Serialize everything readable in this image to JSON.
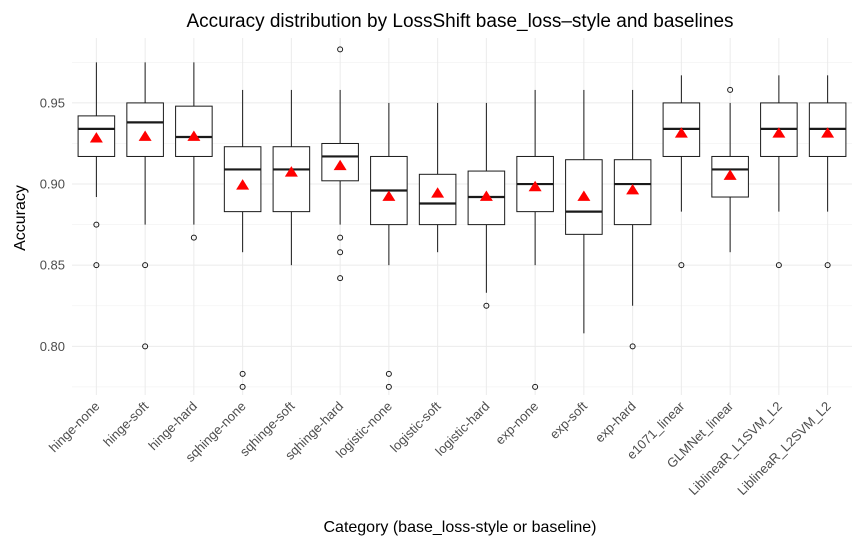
{
  "chart_data": {
    "type": "boxplot",
    "title": "Accuracy distribution by LossShift base_loss–style and baselines",
    "xlabel": "Category (base_loss-style or baseline)",
    "ylabel": "Accuracy",
    "ylim": [
      0.77,
      0.99
    ],
    "yticks": [
      0.8,
      0.85,
      0.9,
      0.95
    ],
    "grid": true,
    "mean_marker": "red-triangle",
    "mean_color": "#ff0000",
    "categories": [
      "hinge-none",
      "hinge-soft",
      "hinge-hard",
      "sqhinge-none",
      "sqhinge-soft",
      "sqhinge-hard",
      "logistic-none",
      "logistic-soft",
      "logistic-hard",
      "exp-none",
      "exp-soft",
      "exp-hard",
      "e1071_linear",
      "GLMNet_linear",
      "LiblineaR_L1SVM_L2",
      "LiblineaR_L2SVM_L2"
    ],
    "boxes": [
      {
        "whisker_low": 0.892,
        "q1": 0.917,
        "median": 0.934,
        "q3": 0.942,
        "whisker_high": 0.975,
        "mean": 0.928,
        "outliers": [
          0.875,
          0.85
        ]
      },
      {
        "whisker_low": 0.875,
        "q1": 0.917,
        "median": 0.938,
        "q3": 0.95,
        "whisker_high": 0.975,
        "mean": 0.929,
        "outliers": [
          0.85,
          0.8
        ]
      },
      {
        "whisker_low": 0.875,
        "q1": 0.917,
        "median": 0.929,
        "q3": 0.948,
        "whisker_high": 0.975,
        "mean": 0.929,
        "outliers": [
          0.867
        ]
      },
      {
        "whisker_low": 0.858,
        "q1": 0.883,
        "median": 0.909,
        "q3": 0.923,
        "whisker_high": 0.958,
        "mean": 0.899,
        "outliers": [
          0.783,
          0.775
        ]
      },
      {
        "whisker_low": 0.85,
        "q1": 0.883,
        "median": 0.909,
        "q3": 0.923,
        "whisker_high": 0.958,
        "mean": 0.907,
        "outliers": []
      },
      {
        "whisker_low": 0.875,
        "q1": 0.902,
        "median": 0.917,
        "q3": 0.925,
        "whisker_high": 0.958,
        "mean": 0.911,
        "outliers": [
          0.983,
          0.867,
          0.858,
          0.842
        ]
      },
      {
        "whisker_low": 0.85,
        "q1": 0.875,
        "median": 0.896,
        "q3": 0.917,
        "whisker_high": 0.95,
        "mean": 0.892,
        "outliers": [
          0.783,
          0.775
        ]
      },
      {
        "whisker_low": 0.858,
        "q1": 0.875,
        "median": 0.888,
        "q3": 0.906,
        "whisker_high": 0.95,
        "mean": 0.894,
        "outliers": []
      },
      {
        "whisker_low": 0.833,
        "q1": 0.875,
        "median": 0.892,
        "q3": 0.908,
        "whisker_high": 0.95,
        "mean": 0.892,
        "outliers": [
          0.825
        ]
      },
      {
        "whisker_low": 0.85,
        "q1": 0.883,
        "median": 0.9,
        "q3": 0.917,
        "whisker_high": 0.958,
        "mean": 0.898,
        "outliers": [
          0.775
        ]
      },
      {
        "whisker_low": 0.808,
        "q1": 0.869,
        "median": 0.883,
        "q3": 0.915,
        "whisker_high": 0.958,
        "mean": 0.892,
        "outliers": []
      },
      {
        "whisker_low": 0.825,
        "q1": 0.875,
        "median": 0.9,
        "q3": 0.915,
        "whisker_high": 0.958,
        "mean": 0.896,
        "outliers": [
          0.8
        ]
      },
      {
        "whisker_low": 0.883,
        "q1": 0.917,
        "median": 0.934,
        "q3": 0.95,
        "whisker_high": 0.967,
        "mean": 0.931,
        "outliers": [
          0.85
        ]
      },
      {
        "whisker_low": 0.858,
        "q1": 0.892,
        "median": 0.909,
        "q3": 0.917,
        "whisker_high": 0.95,
        "mean": 0.905,
        "outliers": [
          0.958
        ]
      },
      {
        "whisker_low": 0.883,
        "q1": 0.917,
        "median": 0.934,
        "q3": 0.95,
        "whisker_high": 0.967,
        "mean": 0.931,
        "outliers": [
          0.85
        ]
      },
      {
        "whisker_low": 0.883,
        "q1": 0.917,
        "median": 0.934,
        "q3": 0.95,
        "whisker_high": 0.967,
        "mean": 0.931,
        "outliers": [
          0.85
        ]
      }
    ]
  }
}
